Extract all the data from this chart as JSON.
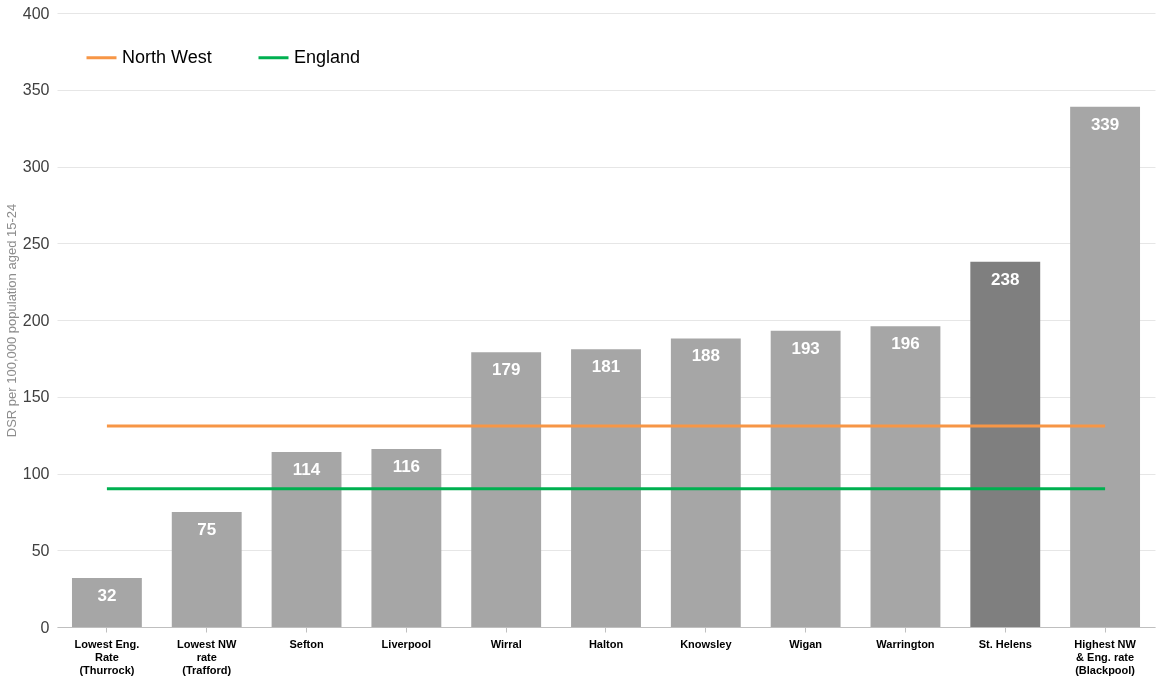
{
  "chart_data": {
    "type": "bar",
    "ylabel": "DSR per 100,000 population aged 15-24",
    "categories": [
      "Lowest Eng. Rate (Thurrock)",
      "Lowest NW rate (Trafford)",
      "Sefton",
      "Liverpool",
      "Wirral",
      "Halton",
      "Knowsley",
      "Wigan",
      "Warrington",
      "St. Helens",
      "Highest NW & Eng. rate (Blackpool)"
    ],
    "values": [
      32,
      75,
      114,
      116,
      179,
      181,
      188,
      193,
      196,
      238,
      339
    ],
    "colors": [
      "#a6a6a6",
      "#a6a6a6",
      "#a6a6a6",
      "#a6a6a6",
      "#a6a6a6",
      "#a6a6a6",
      "#a6a6a6",
      "#a6a6a6",
      "#a6a6a6",
      "#7f7f7f",
      "#a6a6a6"
    ],
    "value_labels": [
      "32",
      "75",
      "114",
      "116",
      "179",
      "181",
      "188",
      "193",
      "196",
      "238",
      "339"
    ],
    "series": [
      {
        "name": "North West",
        "type": "line",
        "color": "#f79646",
        "values": [
          131,
          131,
          131,
          131,
          131,
          131,
          131,
          131,
          131,
          131,
          131
        ]
      },
      {
        "name": "England",
        "type": "line",
        "color": "#00b050",
        "values": [
          90,
          90,
          90,
          90,
          90,
          90,
          90,
          90,
          90,
          90,
          90
        ]
      }
    ],
    "ylim": [
      0,
      400
    ],
    "yticks": [
      0,
      50,
      100,
      150,
      200,
      250,
      300,
      350,
      400
    ],
    "grid": "y",
    "legend": "top left"
  }
}
